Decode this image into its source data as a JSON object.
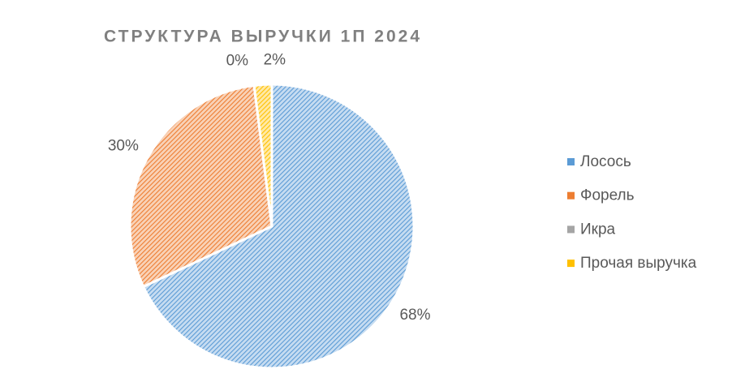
{
  "chart_data": {
    "type": "pie",
    "title": "СТРУКТУРА ВЫРУЧКИ 1П 2024",
    "categories": [
      "Лосось",
      "Форель",
      "Икра",
      "Прочая выручка"
    ],
    "values": [
      68,
      30,
      0,
      2
    ],
    "value_labels": [
      "68%",
      "30%",
      "0%",
      "2%"
    ],
    "colors": [
      "#5b9bd5",
      "#ed7d31",
      "#a5a5a5",
      "#ffc000"
    ],
    "legend": "right"
  }
}
